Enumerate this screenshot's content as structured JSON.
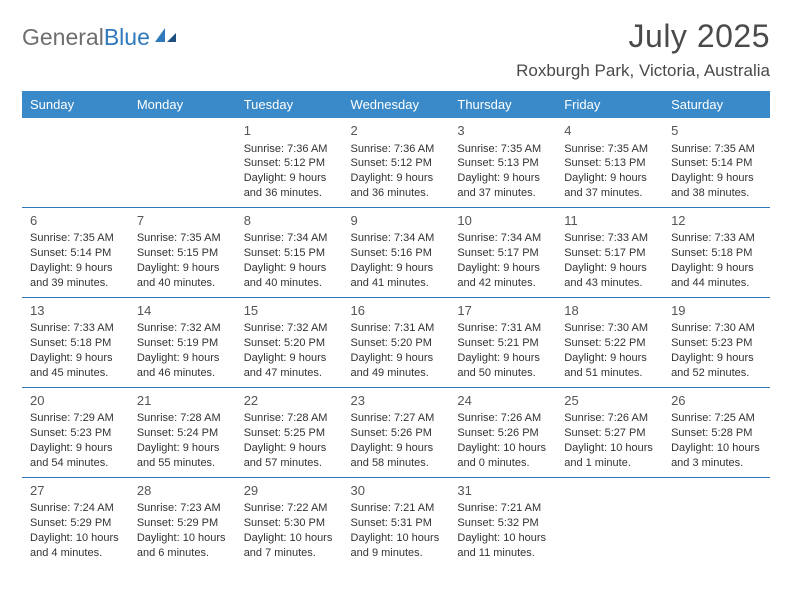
{
  "brand": {
    "word1": "General",
    "word2": "Blue"
  },
  "header": {
    "month": "July 2025",
    "location": "Roxburgh Park, Victoria, Australia"
  },
  "colors": {
    "header_bg": "#3a8ac9",
    "header_fg": "#ffffff",
    "row_sep": "#2f78bc",
    "brand_grey": "#6e6e6e",
    "brand_blue": "#2f78bc",
    "text": "#333333",
    "title": "#4a4a4a",
    "background": "#ffffff"
  },
  "dayNames": [
    "Sunday",
    "Monday",
    "Tuesday",
    "Wednesday",
    "Thursday",
    "Friday",
    "Saturday"
  ],
  "weeks": [
    [
      null,
      null,
      {
        "n": "1",
        "sunrise": "7:36 AM",
        "sunset": "5:12 PM",
        "daylight": "9 hours and 36 minutes."
      },
      {
        "n": "2",
        "sunrise": "7:36 AM",
        "sunset": "5:12 PM",
        "daylight": "9 hours and 36 minutes."
      },
      {
        "n": "3",
        "sunrise": "7:35 AM",
        "sunset": "5:13 PM",
        "daylight": "9 hours and 37 minutes."
      },
      {
        "n": "4",
        "sunrise": "7:35 AM",
        "sunset": "5:13 PM",
        "daylight": "9 hours and 37 minutes."
      },
      {
        "n": "5",
        "sunrise": "7:35 AM",
        "sunset": "5:14 PM",
        "daylight": "9 hours and 38 minutes."
      }
    ],
    [
      {
        "n": "6",
        "sunrise": "7:35 AM",
        "sunset": "5:14 PM",
        "daylight": "9 hours and 39 minutes."
      },
      {
        "n": "7",
        "sunrise": "7:35 AM",
        "sunset": "5:15 PM",
        "daylight": "9 hours and 40 minutes."
      },
      {
        "n": "8",
        "sunrise": "7:34 AM",
        "sunset": "5:15 PM",
        "daylight": "9 hours and 40 minutes."
      },
      {
        "n": "9",
        "sunrise": "7:34 AM",
        "sunset": "5:16 PM",
        "daylight": "9 hours and 41 minutes."
      },
      {
        "n": "10",
        "sunrise": "7:34 AM",
        "sunset": "5:17 PM",
        "daylight": "9 hours and 42 minutes."
      },
      {
        "n": "11",
        "sunrise": "7:33 AM",
        "sunset": "5:17 PM",
        "daylight": "9 hours and 43 minutes."
      },
      {
        "n": "12",
        "sunrise": "7:33 AM",
        "sunset": "5:18 PM",
        "daylight": "9 hours and 44 minutes."
      }
    ],
    [
      {
        "n": "13",
        "sunrise": "7:33 AM",
        "sunset": "5:18 PM",
        "daylight": "9 hours and 45 minutes."
      },
      {
        "n": "14",
        "sunrise": "7:32 AM",
        "sunset": "5:19 PM",
        "daylight": "9 hours and 46 minutes."
      },
      {
        "n": "15",
        "sunrise": "7:32 AM",
        "sunset": "5:20 PM",
        "daylight": "9 hours and 47 minutes."
      },
      {
        "n": "16",
        "sunrise": "7:31 AM",
        "sunset": "5:20 PM",
        "daylight": "9 hours and 49 minutes."
      },
      {
        "n": "17",
        "sunrise": "7:31 AM",
        "sunset": "5:21 PM",
        "daylight": "9 hours and 50 minutes."
      },
      {
        "n": "18",
        "sunrise": "7:30 AM",
        "sunset": "5:22 PM",
        "daylight": "9 hours and 51 minutes."
      },
      {
        "n": "19",
        "sunrise": "7:30 AM",
        "sunset": "5:23 PM",
        "daylight": "9 hours and 52 minutes."
      }
    ],
    [
      {
        "n": "20",
        "sunrise": "7:29 AM",
        "sunset": "5:23 PM",
        "daylight": "9 hours and 54 minutes."
      },
      {
        "n": "21",
        "sunrise": "7:28 AM",
        "sunset": "5:24 PM",
        "daylight": "9 hours and 55 minutes."
      },
      {
        "n": "22",
        "sunrise": "7:28 AM",
        "sunset": "5:25 PM",
        "daylight": "9 hours and 57 minutes."
      },
      {
        "n": "23",
        "sunrise": "7:27 AM",
        "sunset": "5:26 PM",
        "daylight": "9 hours and 58 minutes."
      },
      {
        "n": "24",
        "sunrise": "7:26 AM",
        "sunset": "5:26 PM",
        "daylight": "10 hours and 0 minutes."
      },
      {
        "n": "25",
        "sunrise": "7:26 AM",
        "sunset": "5:27 PM",
        "daylight": "10 hours and 1 minute."
      },
      {
        "n": "26",
        "sunrise": "7:25 AM",
        "sunset": "5:28 PM",
        "daylight": "10 hours and 3 minutes."
      }
    ],
    [
      {
        "n": "27",
        "sunrise": "7:24 AM",
        "sunset": "5:29 PM",
        "daylight": "10 hours and 4 minutes."
      },
      {
        "n": "28",
        "sunrise": "7:23 AM",
        "sunset": "5:29 PM",
        "daylight": "10 hours and 6 minutes."
      },
      {
        "n": "29",
        "sunrise": "7:22 AM",
        "sunset": "5:30 PM",
        "daylight": "10 hours and 7 minutes."
      },
      {
        "n": "30",
        "sunrise": "7:21 AM",
        "sunset": "5:31 PM",
        "daylight": "10 hours and 9 minutes."
      },
      {
        "n": "31",
        "sunrise": "7:21 AM",
        "sunset": "5:32 PM",
        "daylight": "10 hours and 11 minutes."
      },
      null,
      null
    ]
  ],
  "labels": {
    "sunrise": "Sunrise:",
    "sunset": "Sunset:",
    "daylight": "Daylight:"
  }
}
